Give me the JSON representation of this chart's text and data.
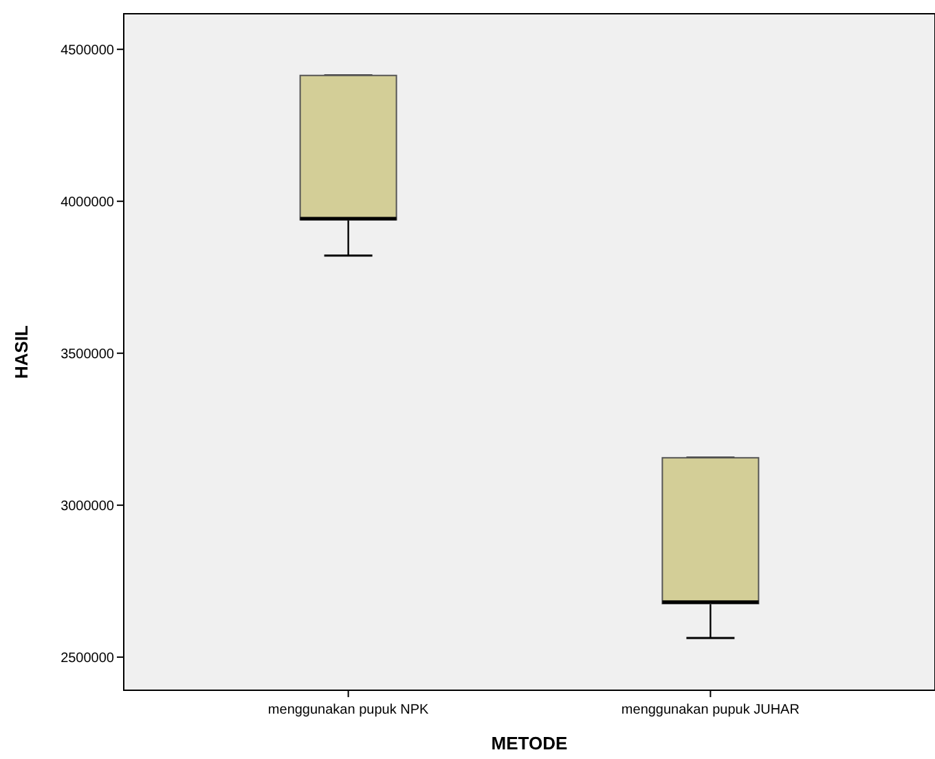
{
  "chart_data": {
    "type": "box",
    "xlabel": "METODE",
    "ylabel": "HASIL",
    "categories": [
      "menggunakan pupuk NPK",
      "menggunakan pupuk JUHAR"
    ],
    "color": "#d3ce97",
    "boxes": [
      {
        "low": 3821000,
        "q1": 3939000,
        "median": 3943000,
        "q3": 4414000,
        "high": 4414000
      },
      {
        "low": 2563000,
        "q1": 2676000,
        "median": 2681000,
        "q3": 3156000,
        "high": 3156000
      }
    ],
    "ylim": [
      2391000,
      4617000
    ],
    "yticks": [
      2500000,
      3000000,
      3500000,
      4000000,
      4500000
    ],
    "grid": false
  }
}
